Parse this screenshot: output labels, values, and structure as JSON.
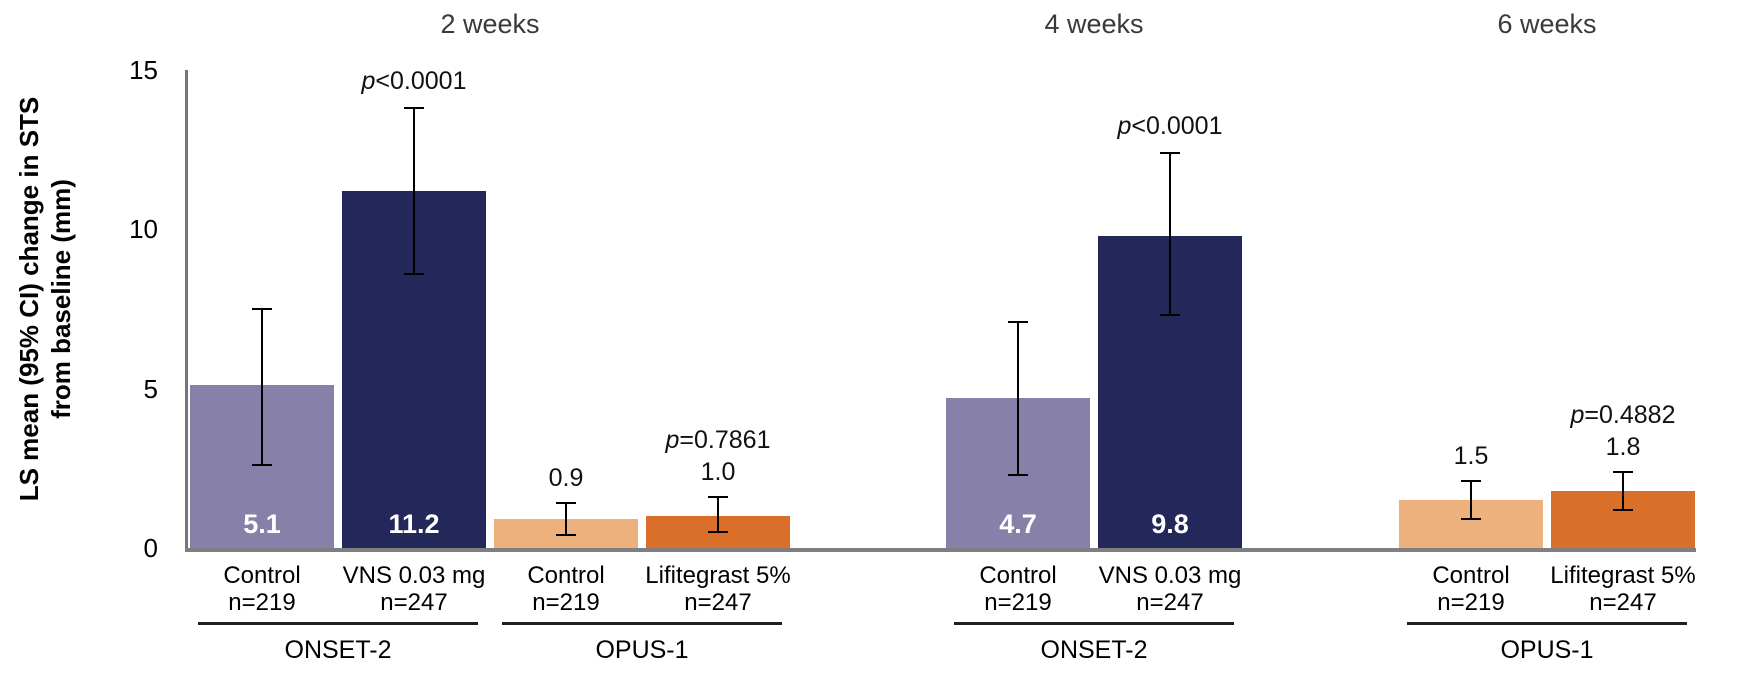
{
  "chart_data": {
    "type": "bar",
    "title": "",
    "ylabel": "LS mean (95% CI) change in STS from baseline (mm)",
    "ylabel_line1": "LS mean (95% CI) change in STS",
    "ylabel_line2": "from baseline (mm)",
    "ylim": [
      0,
      15
    ],
    "grid": false,
    "legend": "none",
    "yticks": [
      {
        "value": 0,
        "label": "0"
      },
      {
        "value": 5,
        "label": "5"
      },
      {
        "value": 10,
        "label": "10"
      },
      {
        "value": 15,
        "label": "15"
      }
    ],
    "colors": {
      "onset2_control": "#8781A9",
      "onset2_vns": "#24275A",
      "opus1_control": "#ECB17C",
      "opus1_lifitegrast": "#D96F28",
      "axis_line": "#77777B",
      "baseline": "#7F7F7F",
      "error_bar": "#000000"
    },
    "sections": [
      {
        "label": "2 weeks",
        "groups": [
          {
            "study": "ONSET-2",
            "bars": [
              {
                "label": "Control",
                "n": "n=219",
                "value": 5.1,
                "value_label": "5.1",
                "ci_low": 2.6,
                "ci_high": 7.5,
                "color": "#8781A9",
                "value_label_inside": true
              },
              {
                "label": "VNS 0.03 mg",
                "n": "n=247",
                "value": 11.2,
                "value_label": "11.2",
                "ci_low": 8.6,
                "ci_high": 13.8,
                "color": "#24275A",
                "value_label_inside": true,
                "p": {
                  "prefix": "p",
                  "rest": "<0.0001"
                }
              }
            ]
          },
          {
            "study": "OPUS-1",
            "bars": [
              {
                "label": "Control",
                "n": "n=219",
                "value": 0.9,
                "value_label": "0.9",
                "ci_low": 0.4,
                "ci_high": 1.4,
                "color": "#ECB17C",
                "value_label_inside": false
              },
              {
                "label": "Lifitegrast 5%",
                "n": "n=247",
                "value": 1.0,
                "value_label": "1.0",
                "ci_low": 0.5,
                "ci_high": 1.6,
                "color": "#D96F28",
                "value_label_inside": false,
                "p": {
                  "prefix": "p",
                  "rest": "=0.7861"
                }
              }
            ]
          }
        ]
      },
      {
        "label": "4 weeks",
        "groups": [
          {
            "study": "ONSET-2",
            "bars": [
              {
                "label": "Control",
                "n": "n=219",
                "value": 4.7,
                "value_label": "4.7",
                "ci_low": 2.3,
                "ci_high": 7.1,
                "color": "#8781A9",
                "value_label_inside": true
              },
              {
                "label": "VNS 0.03 mg",
                "n": "n=247",
                "value": 9.8,
                "value_label": "9.8",
                "ci_low": 7.3,
                "ci_high": 12.4,
                "color": "#24275A",
                "value_label_inside": true,
                "p": {
                  "prefix": "p",
                  "rest": "<0.0001"
                }
              }
            ]
          }
        ]
      },
      {
        "label": "6 weeks",
        "groups": [
          {
            "study": "OPUS-1",
            "bars": [
              {
                "label": "Control",
                "n": "n=219",
                "value": 1.5,
                "value_label": "1.5",
                "ci_low": 0.9,
                "ci_high": 2.1,
                "color": "#ECB17C",
                "value_label_inside": false
              },
              {
                "label": "Lifitegrast 5%",
                "n": "n=247",
                "value": 1.8,
                "value_label": "1.8",
                "ci_low": 1.2,
                "ci_high": 2.4,
                "color": "#D96F28",
                "value_label_inside": false,
                "p": {
                  "prefix": "p",
                  "rest": "=0.4882"
                }
              }
            ]
          }
        ]
      }
    ]
  }
}
